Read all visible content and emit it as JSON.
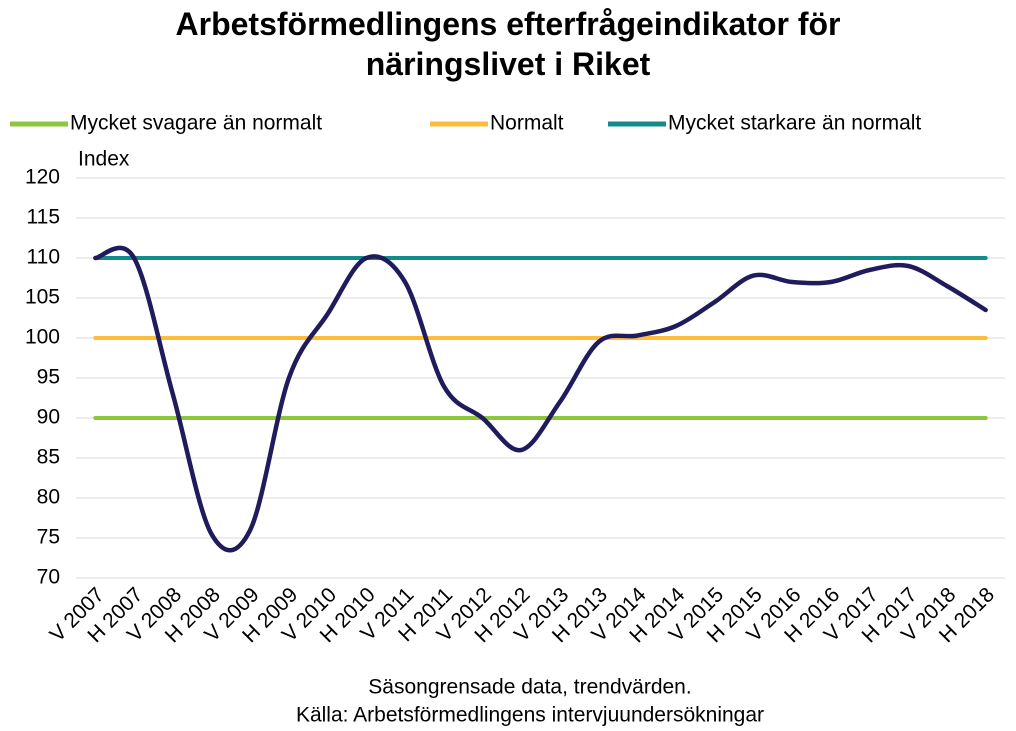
{
  "chart_data": {
    "type": "line",
    "title": "Arbetsförmedlingens efterfrågeindikator för näringslivet i Riket",
    "ylabel": "Index",
    "xlabel": "Säsongrensade data, trendvärden.",
    "source": "Källa: Arbetsförmedlingens intervjuundersökningar",
    "categories": [
      "V 2007",
      "H 2007",
      "V 2008",
      "H 2008",
      "V 2009",
      "H 2009",
      "V 2010",
      "H 2010",
      "V 2011",
      "H 2011",
      "V 2012",
      "H 2012",
      "V 2013",
      "H 2013",
      "V 2014",
      "H 2014",
      "V 2015",
      "H 2015",
      "V 2016",
      "H 2016",
      "V 2017",
      "H 2017",
      "V 2018",
      "H 2018"
    ],
    "series": [
      {
        "name": "Mycket svagare än normalt",
        "color": "#8dc63f",
        "values": [
          90,
          90,
          90,
          90,
          90,
          90,
          90,
          90,
          90,
          90,
          90,
          90,
          90,
          90,
          90,
          90,
          90,
          90,
          90,
          90,
          90,
          90,
          90,
          90
        ]
      },
      {
        "name": "Normalt",
        "color": "#fbbd3b",
        "values": [
          100,
          100,
          100,
          100,
          100,
          100,
          100,
          100,
          100,
          100,
          100,
          100,
          100,
          100,
          100,
          100,
          100,
          100,
          100,
          100,
          100,
          100,
          100,
          100
        ]
      },
      {
        "name": "Mycket starkare än normalt",
        "color": "#138b8b",
        "values": [
          110,
          110,
          110,
          110,
          110,
          110,
          110,
          110,
          110,
          110,
          110,
          110,
          110,
          110,
          110,
          110,
          110,
          110,
          110,
          110,
          110,
          110,
          110,
          110
        ]
      },
      {
        "color": "#201b5c",
        "values": [
          110,
          110,
          93,
          75.5,
          76,
          95,
          103,
          110,
          107,
          94,
          90,
          86,
          92,
          99.5,
          100.3,
          101.5,
          104.5,
          107.8,
          107,
          107,
          108.5,
          109,
          106.5,
          103.5
        ]
      }
    ],
    "ylim": [
      70,
      120
    ],
    "yticks": [
      70,
      75,
      80,
      85,
      90,
      95,
      100,
      105,
      110,
      115,
      120
    ],
    "grid": true,
    "legend": "top"
  }
}
